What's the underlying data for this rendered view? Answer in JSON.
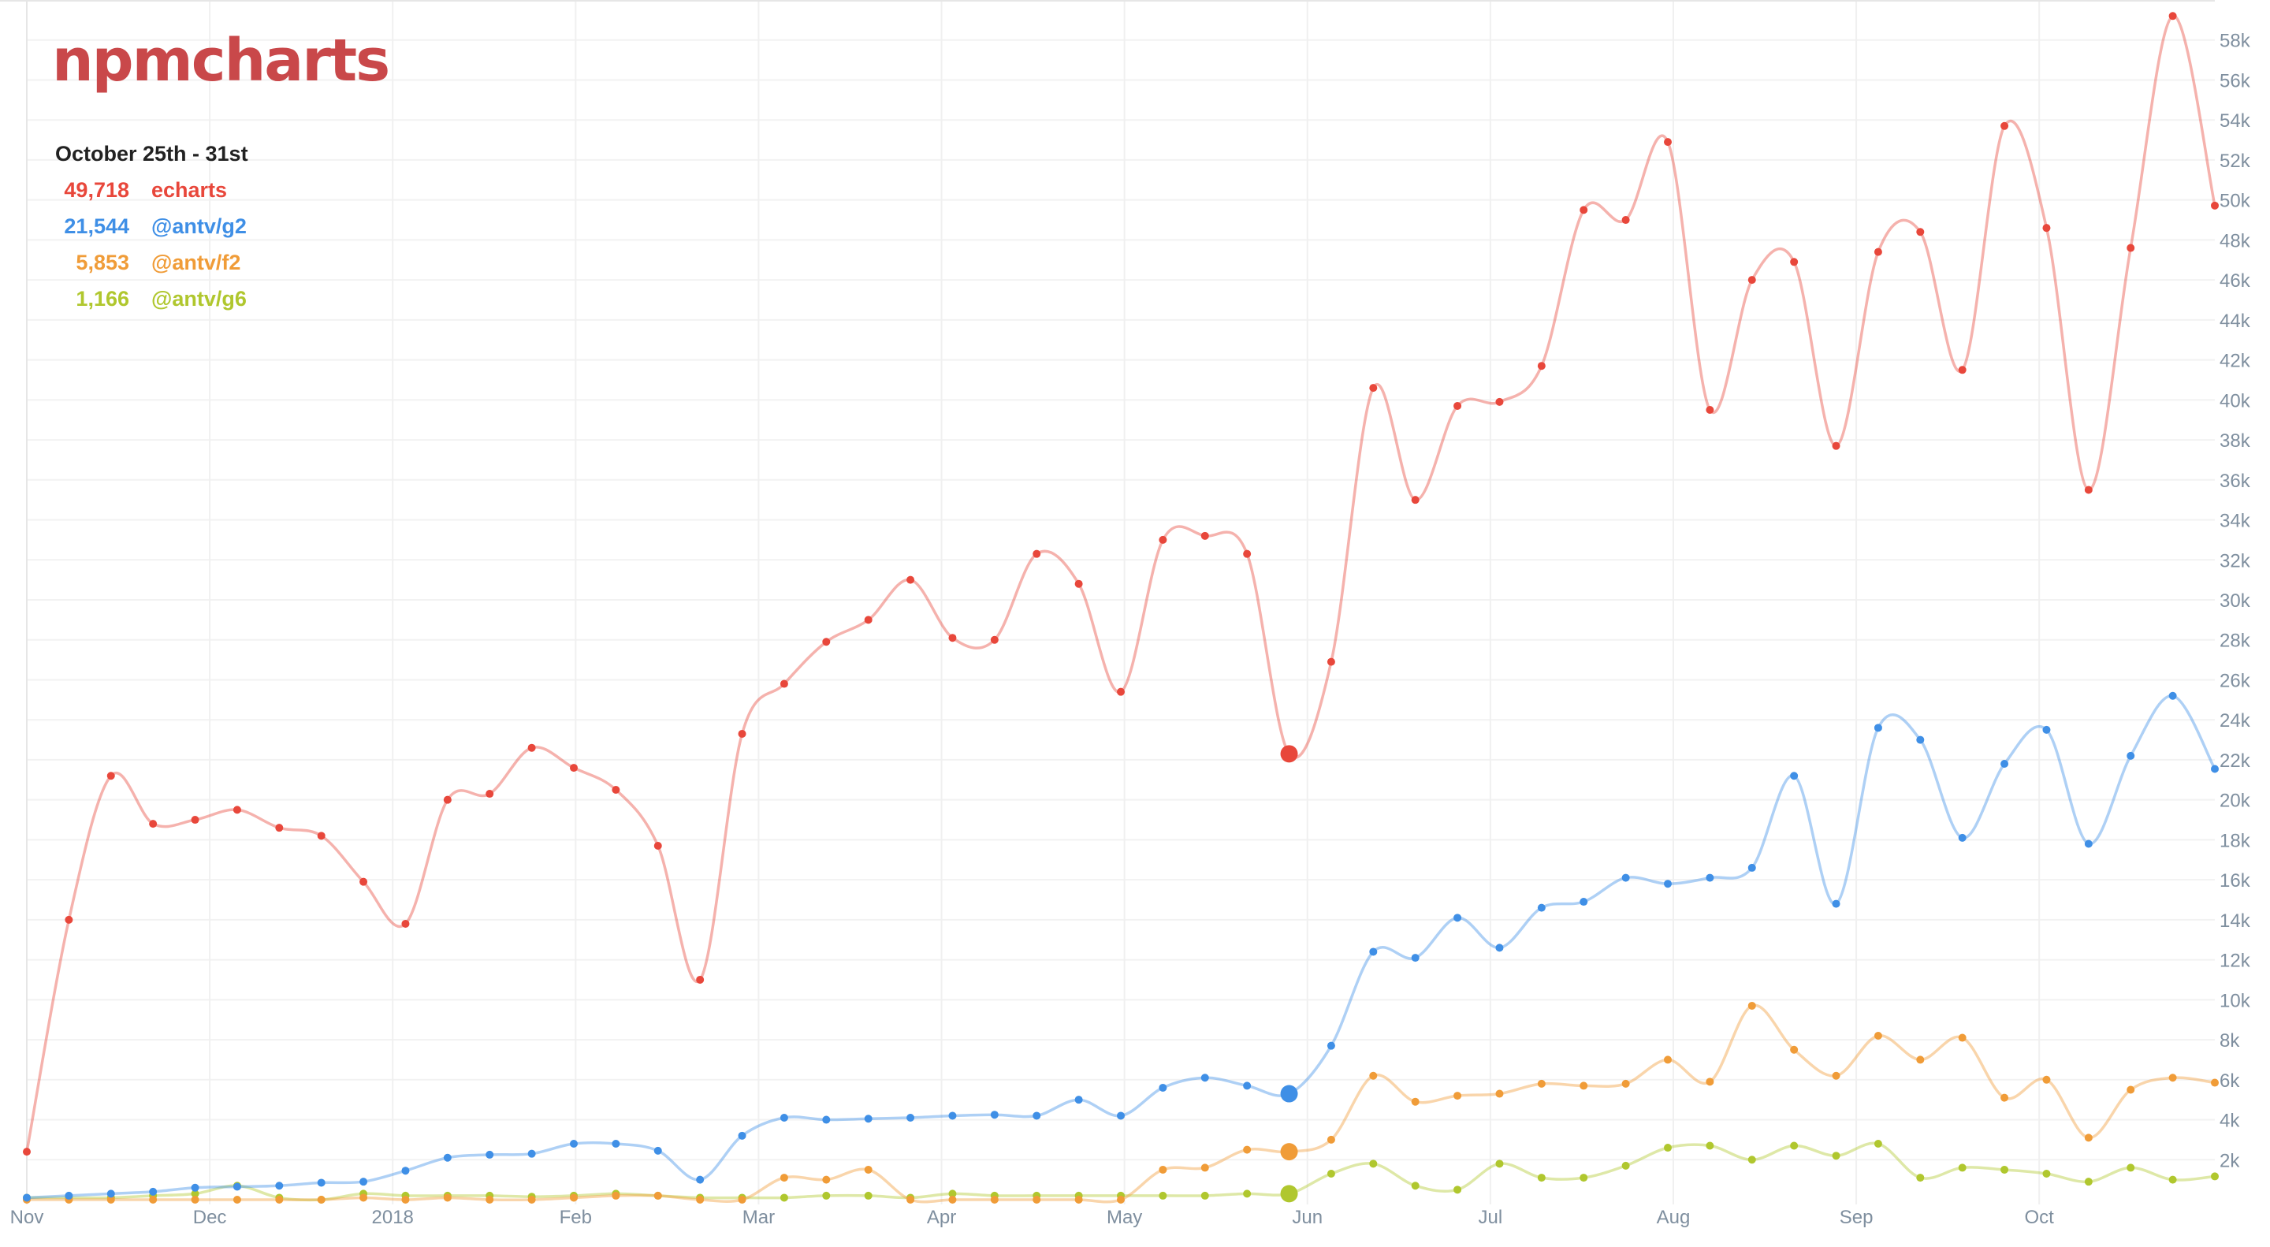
{
  "app": {
    "logo_text": "npmcharts"
  },
  "legend": {
    "range_label": "October 25th - 31st",
    "entries": [
      {
        "value": "49,718",
        "name": "echarts",
        "color": "#e8473b"
      },
      {
        "value": "21,544",
        "name": "@antv/g2",
        "color": "#3f8fe6"
      },
      {
        "value": "5,853",
        "name": "@antv/f2",
        "color": "#f09c38"
      },
      {
        "value": "1,166",
        "name": "@antv/g6",
        "color": "#b0c72e"
      }
    ]
  },
  "chart_data": {
    "type": "line",
    "title": "",
    "xlabel": "",
    "ylabel": "",
    "x_tick_labels": [
      "Nov",
      "Dec",
      "2018",
      "Feb",
      "Mar",
      "Apr",
      "May",
      "Jun",
      "Jul",
      "Aug",
      "Sep",
      "Oct"
    ],
    "y_tick_labels": [
      "2k",
      "4k",
      "6k",
      "8k",
      "10k",
      "12k",
      "14k",
      "16k",
      "18k",
      "20k",
      "22k",
      "24k",
      "26k",
      "28k",
      "30k",
      "32k",
      "34k",
      "36k",
      "38k",
      "40k",
      "42k",
      "44k",
      "46k",
      "48k",
      "50k",
      "52k",
      "54k",
      "56k",
      "58k"
    ],
    "y_ticks": [
      2000,
      4000,
      6000,
      8000,
      10000,
      12000,
      14000,
      16000,
      18000,
      20000,
      22000,
      24000,
      26000,
      28000,
      30000,
      32000,
      34000,
      36000,
      38000,
      40000,
      42000,
      44000,
      46000,
      48000,
      50000,
      52000,
      54000,
      56000,
      58000
    ],
    "ylim": [
      0,
      60000
    ],
    "y_axis_position": "right",
    "grid": true,
    "legend_position": "top-left",
    "x_unit": "weeks",
    "highlight_index": 30,
    "series": [
      {
        "name": "echarts",
        "color": "#e8473b",
        "values": [
          2400,
          14000,
          21200,
          18800,
          19000,
          19500,
          18600,
          18200,
          15900,
          13800,
          20000,
          20300,
          22600,
          21600,
          20500,
          17700,
          11000,
          23300,
          25800,
          27900,
          29000,
          31000,
          28100,
          28000,
          32300,
          30800,
          25400,
          33000,
          33200,
          32300,
          22300,
          26900,
          40600,
          35000,
          39700,
          39900,
          41700,
          49500,
          49000,
          52900,
          39500,
          46000,
          46900,
          37700,
          47400,
          48400,
          41500,
          53700,
          48600,
          35500,
          47600,
          59200,
          49718
        ]
      },
      {
        "name": "@antv/g2",
        "color": "#3f8fe6",
        "values": [
          100,
          200,
          300,
          400,
          600,
          650,
          700,
          850,
          900,
          1450,
          2100,
          2250,
          2300,
          2800,
          2800,
          2450,
          1000,
          3200,
          4100,
          4000,
          4050,
          4100,
          4200,
          4250,
          4200,
          5000,
          4200,
          5600,
          6100,
          5700,
          5300,
          7700,
          12400,
          12100,
          14100,
          12600,
          14600,
          14900,
          16100,
          15800,
          16100,
          16600,
          21200,
          14800,
          23600,
          23000,
          18100,
          21800,
          23500,
          17800,
          22200,
          25200,
          21544
        ]
      },
      {
        "name": "@antv/f2",
        "color": "#f09c38",
        "values": [
          0,
          0,
          0,
          0,
          0,
          0,
          0,
          0,
          100,
          0,
          100,
          0,
          0,
          100,
          200,
          200,
          0,
          0,
          1100,
          1000,
          1500,
          0,
          0,
          0,
          0,
          0,
          0,
          1500,
          1600,
          2500,
          2400,
          3000,
          6200,
          4900,
          5200,
          5300,
          5800,
          5700,
          5800,
          7000,
          5900,
          9700,
          7500,
          6200,
          8200,
          7000,
          8100,
          5100,
          6000,
          3100,
          5500,
          6100,
          5853
        ]
      },
      {
        "name": "@antv/g6",
        "color": "#b0c72e",
        "values": [
          100,
          100,
          100,
          200,
          300,
          700,
          100,
          0,
          300,
          200,
          200,
          200,
          150,
          200,
          300,
          200,
          100,
          100,
          100,
          200,
          200,
          100,
          300,
          200,
          200,
          200,
          200,
          200,
          200,
          300,
          300,
          1300,
          1800,
          700,
          500,
          1800,
          1100,
          1100,
          1700,
          2600,
          2700,
          2000,
          2700,
          2200,
          2800,
          1100,
          1600,
          1500,
          1300,
          900,
          1600,
          1000,
          1166
        ]
      }
    ]
  }
}
